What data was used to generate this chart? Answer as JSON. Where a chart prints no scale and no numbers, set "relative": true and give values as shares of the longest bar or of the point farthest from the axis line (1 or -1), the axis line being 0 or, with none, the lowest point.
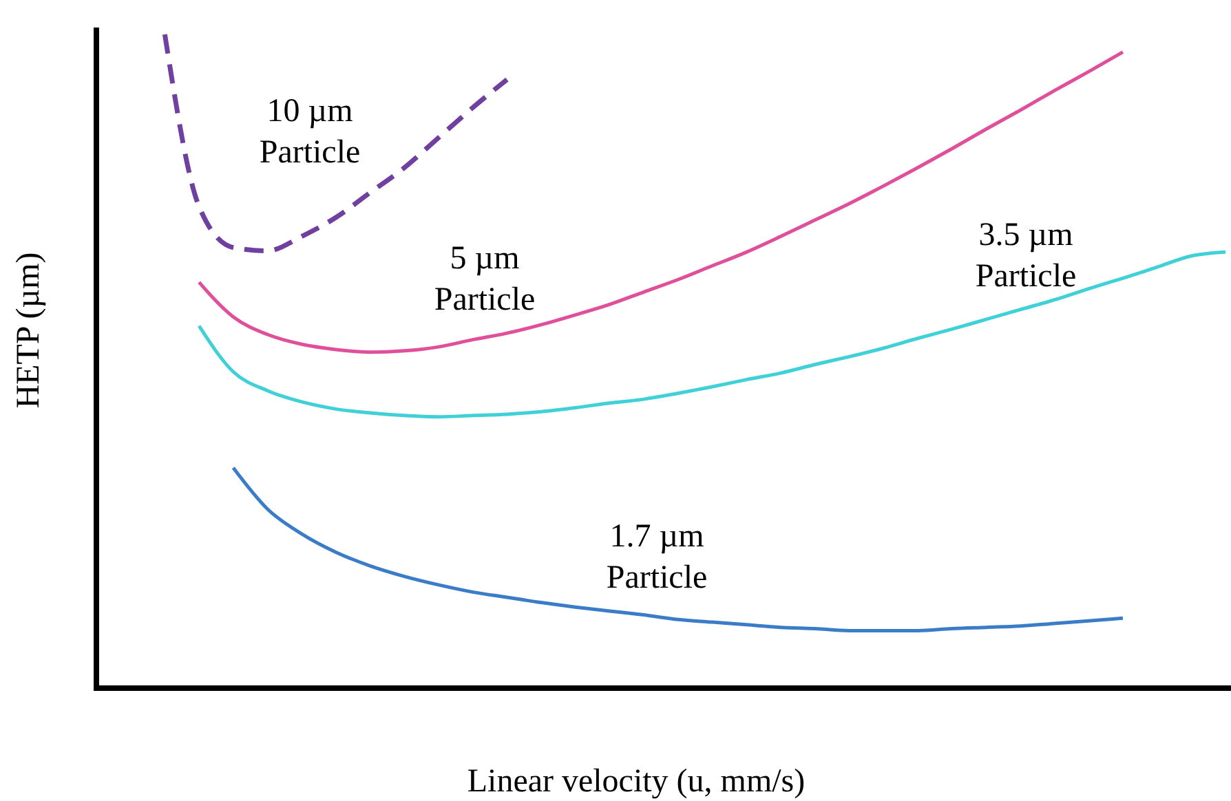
{
  "chart_data": {
    "type": "line",
    "relative": true,
    "xlabel": "Linear velocity (u, mm/s)",
    "ylabel": "HETP (µm)",
    "categories": [
      null,
      null,
      null,
      null,
      null,
      null,
      null,
      null,
      null,
      null,
      null,
      null,
      null,
      null,
      null,
      null,
      null,
      null,
      null,
      null,
      null,
      null,
      null,
      null,
      null,
      null,
      null,
      null,
      null,
      null,
      null,
      null,
      null,
      null
    ],
    "series": [
      {
        "name": "10 µm Particle",
        "color": "#7040a0",
        "line_style": "dashed",
        "values": [
          null,
          null,
          1.0,
          0.737,
          0.674,
          0.669,
          0.691,
          0.72,
          0.758,
          0.796,
          0.842,
          0.888,
          0.931,
          null,
          null,
          null,
          null,
          null,
          null,
          null,
          null,
          null,
          null,
          null,
          null,
          null,
          null,
          null,
          null,
          null,
          null,
          null,
          null,
          null
        ]
      },
      {
        "name": "5 µm Particle",
        "color": "#e0509a",
        "values": [
          null,
          null,
          null,
          0.621,
          0.568,
          0.541,
          0.526,
          0.518,
          0.514,
          0.516,
          0.522,
          0.533,
          0.543,
          0.556,
          0.571,
          0.587,
          0.606,
          0.625,
          0.646,
          0.667,
          0.691,
          0.716,
          0.741,
          0.768,
          0.796,
          0.825,
          0.855,
          0.884,
          0.914,
          0.943,
          0.973,
          null,
          null,
          null
        ]
      },
      {
        "name": "3.5 µm Particle",
        "color": "#40d0d8",
        "values": [
          null,
          null,
          null,
          0.554,
          0.484,
          0.455,
          0.438,
          0.427,
          0.421,
          0.417,
          0.415,
          0.417,
          0.419,
          0.423,
          0.429,
          0.436,
          0.442,
          0.451,
          0.461,
          0.472,
          0.482,
          0.495,
          0.507,
          0.52,
          0.535,
          0.549,
          0.564,
          0.579,
          0.594,
          0.611,
          0.627,
          0.644,
          0.661,
          0.667
        ]
      },
      {
        "name": "1.7 µm Particle",
        "color": "#3a7cc8",
        "values": [
          null,
          null,
          null,
          null,
          0.337,
          0.274,
          0.236,
          0.208,
          0.187,
          0.171,
          0.158,
          0.147,
          0.139,
          0.131,
          0.124,
          0.118,
          0.112,
          0.105,
          0.101,
          0.097,
          0.093,
          0.091,
          0.088,
          0.088,
          0.088,
          0.091,
          0.093,
          0.095,
          0.099,
          0.103,
          0.107,
          null,
          null,
          null
        ]
      }
    ]
  }
}
